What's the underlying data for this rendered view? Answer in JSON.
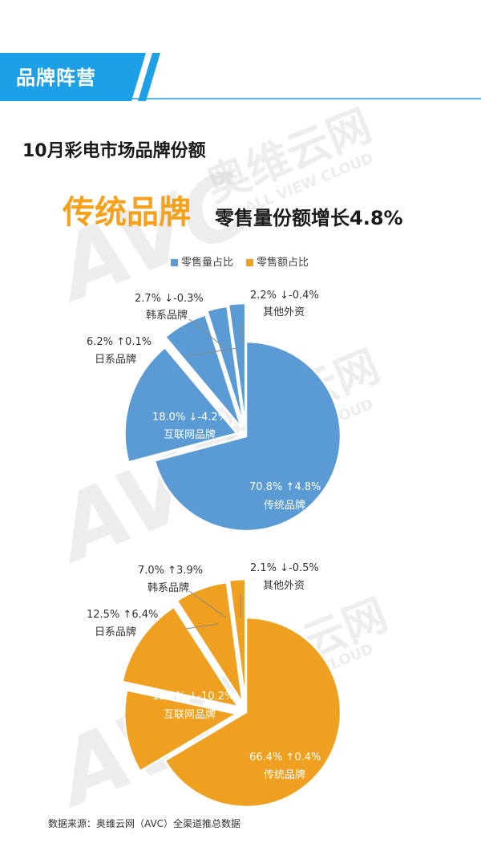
{
  "section_tag": "品牌阵营",
  "page_title": "10月彩电市场品牌份额",
  "headline_main": "传统品牌",
  "headline_sub": "零售量份额增长4.8%",
  "watermark": {
    "cn": "奥维云网",
    "en": "ALL VIEW CLOUD",
    "logo": "AVC"
  },
  "legend": [
    {
      "label": "零售量占比",
      "color": "#5b9bd5"
    },
    {
      "label": "零售额占比",
      "color": "#f0a020"
    }
  ],
  "chart_data": [
    {
      "type": "pie",
      "title": "零售量占比",
      "color": "#5b9bd5",
      "slices": [
        {
          "name": "传统品牌",
          "value": 70.8,
          "change": "↑4.8%"
        },
        {
          "name": "互联网品牌",
          "value": 18.0,
          "change": "↓-4.2%"
        },
        {
          "name": "日系品牌",
          "value": 6.2,
          "change": "↑0.1%"
        },
        {
          "name": "韩系品牌",
          "value": 2.7,
          "change": "↓-0.3%"
        },
        {
          "name": "其他外资",
          "value": 2.2,
          "change": "↓-0.4%"
        }
      ]
    },
    {
      "type": "pie",
      "title": "零售额占比",
      "color": "#f0a020",
      "slices": [
        {
          "name": "传统品牌",
          "value": 66.4,
          "change": "↑0.4%"
        },
        {
          "name": "互联网品牌",
          "value": 11.9,
          "change": "↓-10.2%"
        },
        {
          "name": "日系品牌",
          "value": 12.5,
          "change": "↑6.4%"
        },
        {
          "name": "韩系品牌",
          "value": 7.0,
          "change": "↑3.9%"
        },
        {
          "name": "其他外资",
          "value": 2.1,
          "change": "↓-0.5%"
        }
      ]
    }
  ],
  "source": "数据来源：奥维云网（AVC）全渠道推总数据"
}
